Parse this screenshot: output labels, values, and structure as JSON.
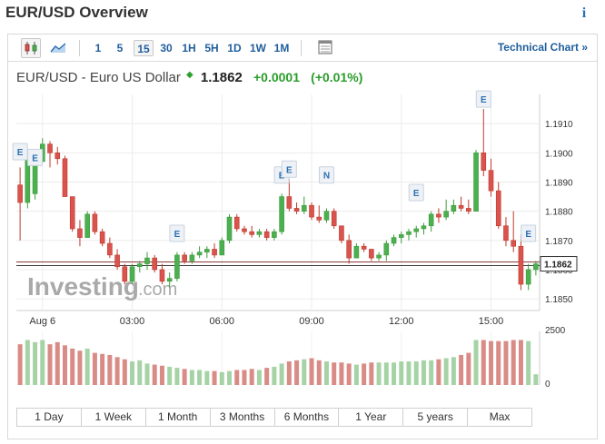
{
  "header": {
    "title": "EUR/USD Overview",
    "info_icon": "info-icon"
  },
  "toolbar": {
    "chart_type_icons": [
      "candlestick-icon",
      "area-chart-icon"
    ],
    "intervals": [
      "1",
      "5",
      "15",
      "30",
      "1H",
      "5H",
      "1D",
      "1W",
      "1M"
    ],
    "active_interval": "15",
    "table_icon": "table-icon",
    "technical_link": "Technical Chart »"
  },
  "quote": {
    "name": "EUR/USD - Euro US Dollar",
    "price": "1.1862",
    "change": "+0.0001",
    "change_pct": "(+0.01%)",
    "up_color": "#2a9d2a"
  },
  "watermark": {
    "brand": "Investing",
    "suffix": ".com"
  },
  "ranges": [
    "1 Day",
    "1 Week",
    "1 Month",
    "3 Months",
    "6 Months",
    "1 Year",
    "5 years",
    "Max"
  ],
  "chart_data": {
    "type": "candlestick",
    "y_ticks": [
      "1.1910",
      "1.1900",
      "1.1890",
      "1.1880",
      "1.1870",
      "1.1860",
      "1.1850"
    ],
    "ylim": [
      1.1846,
      1.192
    ],
    "x_ticks": [
      "Aug 6",
      "03:00",
      "06:00",
      "09:00",
      "12:00",
      "15:00"
    ],
    "current_price_label": "1.1862",
    "current_price": 1.1862,
    "volume_ticks": [
      "2500",
      "0"
    ],
    "volume_max": 2500,
    "colors": {
      "up": "#3c9c3c",
      "down": "#c0392b",
      "up_fill": "#4caf50",
      "down_fill": "#d9534f",
      "vol_up": "#a6d3a6",
      "vol_down": "#d98c86"
    },
    "candles": [
      [
        1.1889,
        1.1895,
        1.187,
        1.1883
      ],
      [
        1.1883,
        1.19,
        1.1881,
        1.1898
      ],
      [
        1.1886,
        1.1898,
        1.1884,
        1.1897
      ],
      [
        1.1897,
        1.1905,
        1.1897,
        1.1903
      ],
      [
        1.1903,
        1.1904,
        1.1895,
        1.19
      ],
      [
        1.19,
        1.1902,
        1.1896,
        1.1898
      ],
      [
        1.1898,
        1.1899,
        1.1885,
        1.1885
      ],
      [
        1.1885,
        1.1885,
        1.1873,
        1.1874
      ],
      [
        1.1874,
        1.1877,
        1.1868,
        1.1871
      ],
      [
        1.1871,
        1.188,
        1.1871,
        1.1879
      ],
      [
        1.1879,
        1.188,
        1.1872,
        1.1873
      ],
      [
        1.1873,
        1.1874,
        1.1868,
        1.1869
      ],
      [
        1.1869,
        1.1871,
        1.1864,
        1.1865
      ],
      [
        1.1865,
        1.1867,
        1.186,
        1.1861
      ],
      [
        1.1861,
        1.1862,
        1.1855,
        1.1856
      ],
      [
        1.1856,
        1.1862,
        1.1855,
        1.1861
      ],
      [
        1.1861,
        1.1863,
        1.1859,
        1.1862
      ],
      [
        1.1862,
        1.1866,
        1.186,
        1.1864
      ],
      [
        1.1864,
        1.1865,
        1.1859,
        1.186
      ],
      [
        1.186,
        1.1862,
        1.1855,
        1.1856
      ],
      [
        1.1856,
        1.1859,
        1.1854,
        1.1857
      ],
      [
        1.1857,
        1.1866,
        1.1856,
        1.1865
      ],
      [
        1.1865,
        1.1866,
        1.1862,
        1.1863
      ],
      [
        1.1863,
        1.1866,
        1.1862,
        1.1865
      ],
      [
        1.1865,
        1.1868,
        1.1864,
        1.1866
      ],
      [
        1.1866,
        1.1868,
        1.1864,
        1.1867
      ],
      [
        1.1867,
        1.1869,
        1.1864,
        1.1865
      ],
      [
        1.1865,
        1.1871,
        1.1865,
        1.187
      ],
      [
        1.187,
        1.1879,
        1.1869,
        1.1878
      ],
      [
        1.1878,
        1.1879,
        1.1873,
        1.1874
      ],
      [
        1.1874,
        1.1875,
        1.1872,
        1.1873
      ],
      [
        1.1873,
        1.1875,
        1.1871,
        1.1872
      ],
      [
        1.1872,
        1.1874,
        1.1871,
        1.1873
      ],
      [
        1.1873,
        1.1874,
        1.187,
        1.1871
      ],
      [
        1.1871,
        1.1874,
        1.187,
        1.1873
      ],
      [
        1.1873,
        1.1886,
        1.1872,
        1.1885
      ],
      [
        1.1885,
        1.1891,
        1.188,
        1.1881
      ],
      [
        1.1881,
        1.1883,
        1.1879,
        1.188
      ],
      [
        1.188,
        1.1885,
        1.1879,
        1.1882
      ],
      [
        1.1882,
        1.1883,
        1.1877,
        1.1878
      ],
      [
        1.1878,
        1.1882,
        1.1876,
        1.1877
      ],
      [
        1.1877,
        1.1881,
        1.1876,
        1.188
      ],
      [
        1.188,
        1.1881,
        1.1874,
        1.1875
      ],
      [
        1.1875,
        1.1875,
        1.1869,
        1.187
      ],
      [
        1.187,
        1.1872,
        1.1862,
        1.1864
      ],
      [
        1.1864,
        1.1869,
        1.1864,
        1.1868
      ],
      [
        1.1868,
        1.1869,
        1.1866,
        1.1867
      ],
      [
        1.1867,
        1.1867,
        1.1863,
        1.1864
      ],
      [
        1.1864,
        1.1866,
        1.1863,
        1.1865
      ],
      [
        1.1865,
        1.187,
        1.1863,
        1.1869
      ],
      [
        1.1869,
        1.1872,
        1.1868,
        1.1871
      ],
      [
        1.1871,
        1.1873,
        1.1869,
        1.1872
      ],
      [
        1.1872,
        1.1874,
        1.187,
        1.1873
      ],
      [
        1.1873,
        1.1875,
        1.1871,
        1.1874
      ],
      [
        1.1874,
        1.1876,
        1.1872,
        1.1875
      ],
      [
        1.1875,
        1.188,
        1.1873,
        1.1879
      ],
      [
        1.1879,
        1.1881,
        1.1876,
        1.1878
      ],
      [
        1.1878,
        1.1884,
        1.1877,
        1.188
      ],
      [
        1.188,
        1.1884,
        1.1879,
        1.1882
      ],
      [
        1.1882,
        1.1885,
        1.188,
        1.1881
      ],
      [
        1.1881,
        1.1884,
        1.1879,
        1.188
      ],
      [
        1.188,
        1.1901,
        1.188,
        1.19
      ],
      [
        1.19,
        1.1915,
        1.1892,
        1.1894
      ],
      [
        1.1894,
        1.1898,
        1.1885,
        1.1887
      ],
      [
        1.1887,
        1.189,
        1.1874,
        1.1875
      ],
      [
        1.1875,
        1.1878,
        1.1868,
        1.187
      ],
      [
        1.187,
        1.188,
        1.1866,
        1.1868
      ],
      [
        1.1868,
        1.1872,
        1.1853,
        1.1855
      ],
      [
        1.1855,
        1.1862,
        1.1853,
        1.186
      ],
      [
        1.186,
        1.1863,
        1.1858,
        1.1862
      ]
    ],
    "volumes": [
      1900,
      2100,
      2000,
      2100,
      1900,
      2000,
      1850,
      1700,
      1600,
      1700,
      1500,
      1450,
      1400,
      1300,
      1200,
      1100,
      1150,
      1000,
      950,
      900,
      850,
      800,
      750,
      700,
      700,
      650,
      650,
      600,
      650,
      700,
      700,
      750,
      700,
      800,
      850,
      1000,
      1100,
      1150,
      1200,
      1250,
      1150,
      1100,
      1050,
      1050,
      1000,
      950,
      1000,
      1050,
      1050,
      1050,
      1050,
      1100,
      1100,
      1100,
      1150,
      1150,
      1200,
      1250,
      1300,
      1400,
      1500,
      2100,
      2100,
      2050,
      2050,
      2050,
      2100,
      2100,
      2050,
      500
    ],
    "event_markers": [
      {
        "label": "E",
        "candle": 0,
        "price": 1.1897
      },
      {
        "label": "E",
        "candle": 2,
        "price": 1.1895
      },
      {
        "label": "E",
        "candle": 21,
        "price": 1.1869
      },
      {
        "label": "E",
        "candle": 35,
        "price": 1.1889
      },
      {
        "label": "E",
        "candle": 36,
        "price": 1.1891
      },
      {
        "label": "N",
        "candle": 41,
        "price": 1.1889
      },
      {
        "label": "E",
        "candle": 53,
        "price": 1.1883
      },
      {
        "label": "E",
        "candle": 62,
        "price": 1.1915
      },
      {
        "label": "E",
        "candle": 68,
        "price": 1.1869
      }
    ]
  }
}
